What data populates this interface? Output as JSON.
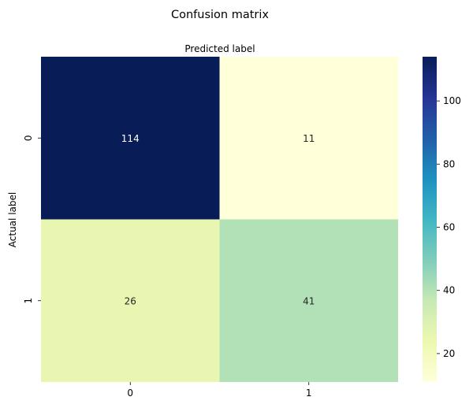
{
  "chart_data": {
    "type": "heatmap",
    "title": "Confusion matrix",
    "xlabel": "Predicted label",
    "ylabel": "Actual label",
    "x_categories": [
      "0",
      "1"
    ],
    "y_categories": [
      "0",
      "1"
    ],
    "values": [
      [
        114,
        11
      ],
      [
        26,
        41
      ]
    ],
    "colormap": "YlGnBu",
    "colorbar": {
      "range": [
        11,
        114
      ],
      "ticks": [
        20,
        40,
        60,
        80,
        100
      ],
      "tick_labels": [
        "20",
        "40",
        "60",
        "80",
        "100"
      ]
    },
    "cell_colors": [
      [
        "#081d58",
        "#ffffd9"
      ],
      [
        "#e9f6b2",
        "#b2e0b7"
      ]
    ],
    "annotation_colors": [
      [
        "#ffffff",
        "#262626"
      ],
      [
        "#262626",
        "#262626"
      ]
    ]
  }
}
